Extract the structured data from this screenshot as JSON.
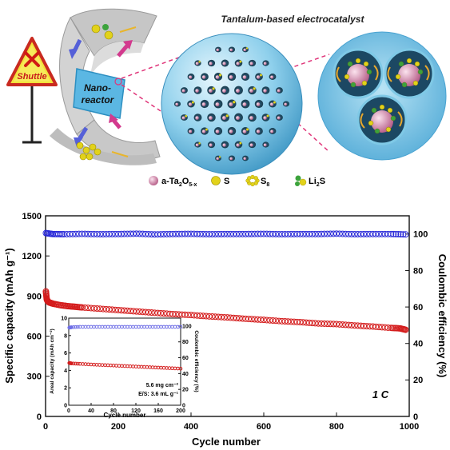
{
  "schematic": {
    "title": "Tantalum-based electrocatalyst",
    "sign_label": "Shuttle",
    "nanoreactor_label": [
      "Nano-",
      "reactor"
    ],
    "legend": [
      {
        "label": "a-Ta",
        "sub": "2",
        "tail": "O",
        "sub2": "5-x",
        "icon": "pink-sphere"
      },
      {
        "label": "S",
        "icon": "yellow-sphere"
      },
      {
        "label": "S",
        "sub": "8",
        "icon": "s8-ring"
      },
      {
        "label": "Li",
        "sub": "2",
        "tail": "S",
        "icon": "li2s-pair"
      }
    ],
    "colors": {
      "pink": "#c98aa6",
      "yellow": "#e2d21a",
      "green": "#3ca33c",
      "shell": "#7fc9e6",
      "sign": "#f2e23a"
    }
  },
  "chart_data": {
    "type": "scatter",
    "x_label": "Cycle number",
    "y_label": "Specific capacity (mAh g⁻¹)",
    "y2_label": "Coulombic efficiency (%)",
    "xlim": [
      0,
      1000
    ],
    "ylim": [
      0,
      1500
    ],
    "y2lim": [
      0,
      110
    ],
    "x_ticks": [
      "0",
      "200",
      "400",
      "600",
      "800",
      "1000"
    ],
    "y_ticks": [
      "0",
      "300",
      "600",
      "900",
      "1200",
      "1500"
    ],
    "y2_ticks": [
      "0",
      "20",
      "40",
      "60",
      "80",
      "100"
    ],
    "rate_label": "1 C",
    "series": [
      {
        "name": "Specific capacity",
        "axis": "left",
        "color": "#d41c1c",
        "x": [
          1,
          3,
          5,
          10,
          20,
          40,
          60,
          80,
          100,
          150,
          200,
          250,
          300,
          350,
          400,
          450,
          500,
          550,
          600,
          650,
          700,
          750,
          800,
          850,
          900,
          950,
          975,
          990
        ],
        "y": [
          935,
          880,
          865,
          852,
          843,
          832,
          825,
          820,
          815,
          805,
          795,
          785,
          775,
          765,
          758,
          748,
          740,
          730,
          722,
          712,
          705,
          695,
          690,
          680,
          672,
          662,
          658,
          648
        ]
      },
      {
        "name": "Coulombic efficiency",
        "axis": "right",
        "color": "#2a2ad8",
        "x": [
          1,
          20,
          50,
          100,
          150,
          200,
          250,
          300,
          350,
          400,
          450,
          500,
          550,
          600,
          650,
          700,
          750,
          800,
          850,
          900,
          950,
          990
        ],
        "y": [
          100.5,
          100,
          99.9,
          100.1,
          99.9,
          100,
          100.2,
          99.8,
          100,
          100.1,
          99.9,
          100,
          100,
          100.1,
          99.9,
          100,
          100,
          100.2,
          99.9,
          100,
          100,
          99.8
        ]
      }
    ],
    "inset": {
      "x_label": "Cycle number",
      "y_label": "Areal capacity (mAh cm⁻²)",
      "y2_label": "Coulombic efficiency (%)",
      "xlim": [
        0,
        200
      ],
      "ylim": [
        0,
        10
      ],
      "y2lim": [
        0,
        110
      ],
      "x_ticks": [
        "0",
        "40",
        "80",
        "120",
        "160",
        "200"
      ],
      "y_ticks": [
        "0",
        "2",
        "4",
        "6",
        "8",
        "10"
      ],
      "y2_ticks": [
        "0",
        "20",
        "40",
        "60",
        "80",
        "100"
      ],
      "annotations": [
        "5.6 mg cm⁻²",
        "E/S: 3.6 mL g⁻¹"
      ],
      "series": [
        {
          "name": "Areal capacity",
          "axis": "left",
          "color": "#d41c1c",
          "x": [
            1,
            5,
            20,
            40,
            60,
            80,
            100,
            120,
            140,
            160,
            180,
            200
          ],
          "y": [
            4.85,
            4.8,
            4.75,
            4.68,
            4.62,
            4.56,
            4.5,
            4.44,
            4.38,
            4.32,
            4.26,
            4.2
          ]
        },
        {
          "name": "Coulombic efficiency",
          "axis": "right",
          "color": "#6f6fe6",
          "x": [
            1,
            5,
            20,
            40,
            60,
            80,
            100,
            120,
            140,
            160,
            180,
            200
          ],
          "y": [
            98,
            98.5,
            99,
            99,
            99,
            99,
            99,
            99,
            99,
            99,
            99,
            99
          ]
        }
      ]
    }
  }
}
